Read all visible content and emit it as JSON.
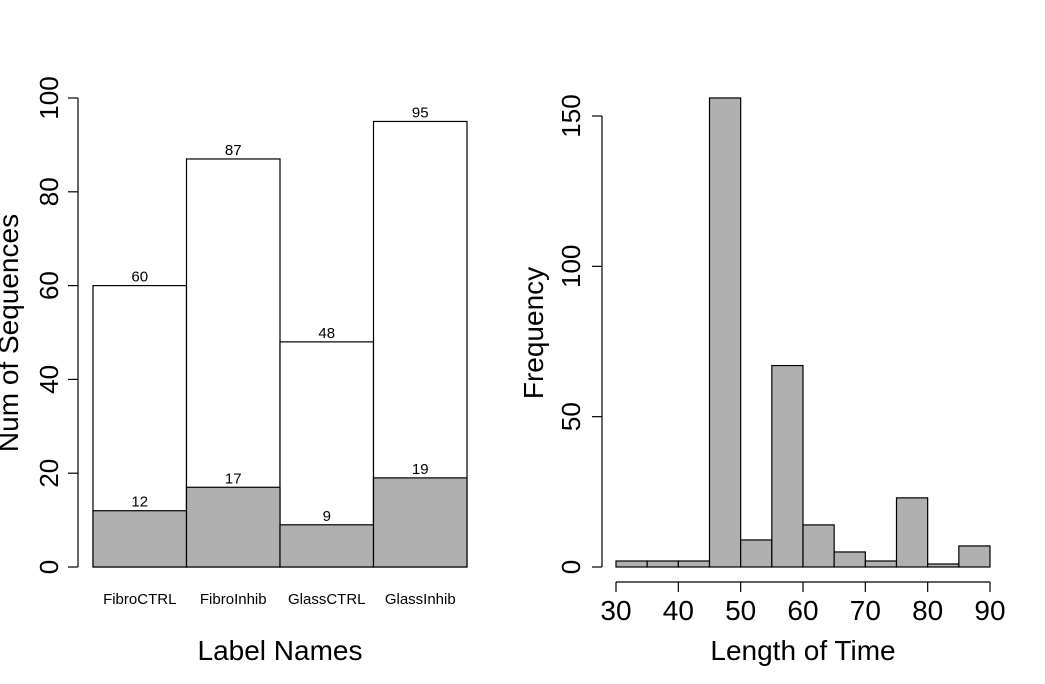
{
  "chart_data": [
    {
      "type": "bar",
      "xlabel": "Label Names",
      "ylabel": "Num of Sequences",
      "ylim": [
        0,
        100
      ],
      "yticks": [
        0,
        20,
        40,
        60,
        80,
        100
      ],
      "categories": [
        "FibroCTRL",
        "FibroInhib",
        "GlassCTRL",
        "GlassInhib"
      ],
      "series": [
        {
          "values": [
            60,
            87,
            48,
            95
          ],
          "color": "#ffffff"
        },
        {
          "values": [
            12,
            17,
            9,
            19
          ],
          "color": "#b0b0b0"
        }
      ],
      "grid": false
    },
    {
      "type": "bar",
      "subtype": "histogram",
      "xlabel": "Length of Time",
      "ylabel": "Frequency",
      "xlim": [
        30,
        90
      ],
      "ylim": [
        0,
        150
      ],
      "xticks": [
        30,
        40,
        50,
        60,
        70,
        80,
        90
      ],
      "yticks": [
        0,
        50,
        100,
        150
      ],
      "bin_width": 5,
      "bin_edges": [
        30,
        35,
        40,
        45,
        50,
        55,
        60,
        65,
        70,
        75,
        80,
        85,
        90
      ],
      "counts": [
        2,
        2,
        2,
        156,
        9,
        67,
        14,
        5,
        2,
        23,
        1,
        7
      ],
      "color": "#b0b0b0",
      "grid": false
    }
  ]
}
